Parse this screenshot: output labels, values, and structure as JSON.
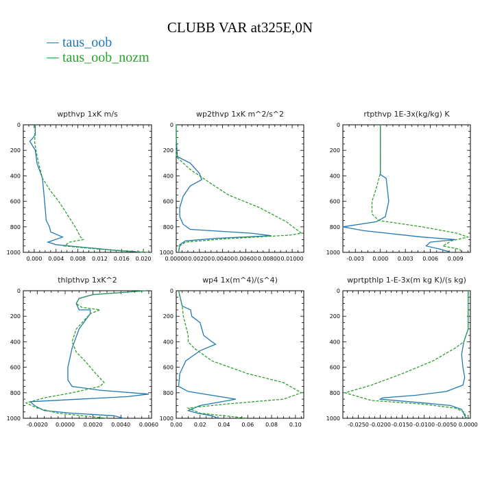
{
  "title": "CLUBB VAR at325E,0N",
  "colors": {
    "series_1": "#1f77b4",
    "series_2": "#2ca02c",
    "axis": "#000000"
  },
  "legend": [
    {
      "label": "taus_oob",
      "color": "#1f77b4",
      "style": "solid"
    },
    {
      "label": "taus_oob_nozm",
      "color": "#2ca02c",
      "style": "dashed"
    }
  ],
  "chart_data": [
    {
      "type": "line",
      "title": "wpthvp  1xK m/s",
      "ylim": [
        0,
        1000
      ],
      "y_reversed": true,
      "xlim": [
        -0.002,
        0.0215
      ],
      "y_ticks": [
        "0",
        "200",
        "400",
        "600",
        "800",
        "1000"
      ],
      "x_ticks": [
        "0.000",
        "0.004",
        "0.008",
        "0.012",
        "0.016",
        "0.020"
      ],
      "x_tick_values": [
        0,
        0.004,
        0.008,
        0.012,
        0.016,
        0.02
      ],
      "series": [
        {
          "name": "taus_oob",
          "points": [
            [
              0.0002,
              0
            ],
            [
              0.0002,
              80
            ],
            [
              -0.0008,
              130
            ],
            [
              0.0002,
              200
            ],
            [
              0.0005,
              300
            ],
            [
              0.0015,
              420
            ],
            [
              0.0018,
              550
            ],
            [
              0.002,
              650
            ],
            [
              0.0022,
              750
            ],
            [
              0.0028,
              800
            ],
            [
              0.003,
              840
            ],
            [
              0.0052,
              880
            ],
            [
              0.0025,
              920
            ],
            [
              0.004,
              940
            ],
            [
              0.009,
              960
            ],
            [
              0.015,
              985
            ],
            [
              0.02,
              1000
            ]
          ]
        },
        {
          "name": "taus_oob_nozm",
          "points": [
            [
              0.0002,
              0
            ],
            [
              0.0001,
              80
            ],
            [
              0.0001,
              140
            ],
            [
              0.0004,
              220
            ],
            [
              0.0008,
              300
            ],
            [
              0.0015,
              420
            ],
            [
              0.003,
              520
            ],
            [
              0.0045,
              600
            ],
            [
              0.006,
              700
            ],
            [
              0.0075,
              800
            ],
            [
              0.0085,
              880
            ],
            [
              0.009,
              900
            ],
            [
              0.0065,
              920
            ],
            [
              0.0055,
              950
            ],
            [
              0.012,
              975
            ],
            [
              0.021,
              1000
            ]
          ]
        }
      ]
    },
    {
      "type": "line",
      "title": "wp2thvp  1xK m^2/s^2",
      "ylim": [
        0,
        1000
      ],
      "y_reversed": true,
      "xlim": [
        0,
        0.011
      ],
      "y_ticks": [
        "0",
        "200",
        "400",
        "600",
        "800",
        "1000"
      ],
      "x_ticks": [
        "0.00000",
        "0.00200",
        "0.00400",
        "0.00600",
        "0.00800",
        "0.01000"
      ],
      "x_tick_values": [
        0,
        0.002,
        0.004,
        0.006,
        0.008,
        0.01
      ],
      "series": [
        {
          "name": "taus_oob",
          "points": [
            [
              0,
              0
            ],
            [
              0,
              100
            ],
            [
              0.0001,
              250
            ],
            [
              0.0012,
              300
            ],
            [
              0.002,
              380
            ],
            [
              0.0022,
              430
            ],
            [
              0.0012,
              480
            ],
            [
              0.0006,
              560
            ],
            [
              0.0003,
              650
            ],
            [
              0.0003,
              720
            ],
            [
              0.0006,
              780
            ],
            [
              0.0012,
              820
            ],
            [
              0.0065,
              850
            ],
            [
              0.0082,
              870
            ],
            [
              0.0035,
              890
            ],
            [
              0.0008,
              910
            ],
            [
              0.0003,
              940
            ],
            [
              0.0002,
              1000
            ]
          ]
        },
        {
          "name": "taus_oob_nozm",
          "points": [
            [
              0,
              0
            ],
            [
              0,
              100
            ],
            [
              0,
              250
            ],
            [
              0.0012,
              350
            ],
            [
              0.0025,
              430
            ],
            [
              0.0045,
              550
            ],
            [
              0.0072,
              650
            ],
            [
              0.0095,
              760
            ],
            [
              0.0108,
              850
            ],
            [
              0.0098,
              865
            ],
            [
              0.004,
              895
            ],
            [
              0.0008,
              920
            ],
            [
              0.0003,
              950
            ],
            [
              0.0002,
              1000
            ]
          ]
        }
      ]
    },
    {
      "type": "line",
      "title": "rtpthvp   1E-3x(kg/kg) K",
      "ylim": [
        0,
        1000
      ],
      "y_reversed": true,
      "xlim": [
        -0.0045,
        0.0108
      ],
      "y_ticks": [
        "0",
        "200",
        "400",
        "600",
        "800",
        "1000"
      ],
      "x_ticks": [
        "-0.003",
        "0.000",
        "0.003",
        "0.006",
        "0.009"
      ],
      "x_tick_values": [
        -0.003,
        0,
        0.003,
        0.006,
        0.009
      ],
      "series": [
        {
          "name": "taus_oob",
          "points": [
            [
              0,
              0
            ],
            [
              0,
              200
            ],
            [
              0,
              390
            ],
            [
              0.0007,
              420
            ],
            [
              0.001,
              600
            ],
            [
              0.0006,
              720
            ],
            [
              -0.0005,
              760
            ],
            [
              -0.0045,
              800
            ],
            [
              -0.002,
              830
            ],
            [
              0.005,
              880
            ],
            [
              0.009,
              900
            ],
            [
              0.006,
              920
            ],
            [
              0.0055,
              950
            ],
            [
              0.0072,
              975
            ],
            [
              0.0085,
              1000
            ]
          ]
        },
        {
          "name": "taus_oob_nozm",
          "points": [
            [
              0,
              0
            ],
            [
              0,
              200
            ],
            [
              0,
              380
            ],
            [
              -0.0005,
              500
            ],
            [
              -0.001,
              600
            ],
            [
              -0.001,
              700
            ],
            [
              -0.0002,
              750
            ],
            [
              0.005,
              800
            ],
            [
              0.0092,
              850
            ],
            [
              0.0105,
              880
            ],
            [
              0.0085,
              910
            ],
            [
              0.0075,
              950
            ],
            [
              0.0095,
              975
            ],
            [
              0.0098,
              1000
            ]
          ]
        }
      ]
    },
    {
      "type": "line",
      "title": "thlpthvp   1xK^2",
      "ylim": [
        0,
        1000
      ],
      "y_reversed": true,
      "xlim": [
        -0.003,
        0.0062
      ],
      "y_ticks": [
        "0",
        "200",
        "400",
        "600",
        "800",
        "1000"
      ],
      "x_ticks": [
        "-0.0020",
        "0.0000",
        "0.0020",
        "0.0040",
        "0.0060"
      ],
      "x_tick_values": [
        -0.002,
        0,
        0.002,
        0.004,
        0.006
      ],
      "series": [
        {
          "name": "taus_oob",
          "points": [
            [
              0.0058,
              0
            ],
            [
              0.002,
              30
            ],
            [
              0.001,
              60
            ],
            [
              0.0008,
              100
            ],
            [
              0.001,
              150
            ],
            [
              0.0018,
              150
            ],
            [
              0.0018,
              180
            ],
            [
              0.001,
              300
            ],
            [
              0.0005,
              450
            ],
            [
              0.0002,
              600
            ],
            [
              0.0002,
              700
            ],
            [
              0.0005,
              750
            ],
            [
              0.0025,
              780
            ],
            [
              0.006,
              810
            ],
            [
              0.0045,
              830
            ],
            [
              -0.0025,
              870
            ],
            [
              -0.0022,
              900
            ],
            [
              -0.0015,
              940
            ],
            [
              0.0005,
              960
            ],
            [
              0.0035,
              980
            ],
            [
              0.0042,
              1000
            ]
          ]
        },
        {
          "name": "taus_oob_nozm",
          "points": [
            [
              0.0058,
              0
            ],
            [
              0.002,
              30
            ],
            [
              0.001,
              60
            ],
            [
              0.0008,
              100
            ],
            [
              0.0012,
              130
            ],
            [
              0.0025,
              150
            ],
            [
              0.0018,
              180
            ],
            [
              0.0008,
              300
            ],
            [
              0.0005,
              400
            ],
            [
              0.0008,
              480
            ],
            [
              0.0015,
              560
            ],
            [
              0.0022,
              650
            ],
            [
              0.0028,
              720
            ],
            [
              0.0025,
              750
            ],
            [
              0.0005,
              800
            ],
            [
              -0.0015,
              840
            ],
            [
              -0.0028,
              880
            ],
            [
              -0.002,
              920
            ],
            [
              -0.0005,
              960
            ],
            [
              0.003,
              1000
            ]
          ]
        }
      ]
    },
    {
      "type": "line",
      "title": "wp4   1x(m^4)/(s^4)",
      "ylim": [
        0,
        1000
      ],
      "y_reversed": true,
      "xlim": [
        0,
        0.107
      ],
      "y_ticks": [
        "0",
        "200",
        "400",
        "600",
        "800",
        "1000"
      ],
      "x_ticks": [
        "0.00",
        "0.02",
        "0.04",
        "0.06",
        "0.08",
        "0.10"
      ],
      "x_tick_values": [
        0,
        0.02,
        0.04,
        0.06,
        0.08,
        0.1
      ],
      "series": [
        {
          "name": "taus_oob",
          "points": [
            [
              0.002,
              0
            ],
            [
              0.005,
              120
            ],
            [
              0.012,
              150
            ],
            [
              0.013,
              200
            ],
            [
              0.02,
              250
            ],
            [
              0.023,
              350
            ],
            [
              0.03,
              400
            ],
            [
              0.033,
              420
            ],
            [
              0.02,
              470
            ],
            [
              0.008,
              550
            ],
            [
              0.003,
              650
            ],
            [
              0.002,
              750
            ],
            [
              0.01,
              790
            ],
            [
              0.05,
              850
            ],
            [
              0.02,
              900
            ],
            [
              0.01,
              940
            ],
            [
              0.018,
              960
            ],
            [
              0.03,
              980
            ],
            [
              0.035,
              1000
            ]
          ]
        },
        {
          "name": "taus_oob_nozm",
          "points": [
            [
              0.002,
              0
            ],
            [
              0.005,
              120
            ],
            [
              0.006,
              200
            ],
            [
              0.01,
              350
            ],
            [
              0.01,
              400
            ],
            [
              0.015,
              450
            ],
            [
              0.03,
              550
            ],
            [
              0.06,
              650
            ],
            [
              0.09,
              720
            ],
            [
              0.105,
              800
            ],
            [
              0.09,
              850
            ],
            [
              0.04,
              890
            ],
            [
              0.01,
              920
            ],
            [
              0.02,
              960
            ],
            [
              0.04,
              980
            ],
            [
              0.06,
              1000
            ]
          ]
        }
      ]
    },
    {
      "type": "line",
      "title": "wprtpthlp   1-E-3x(m kg K)/(s kg)",
      "ylim": [
        0,
        1000
      ],
      "y_reversed": true,
      "xlim": [
        -0.0285,
        0.0005
      ],
      "y_ticks": [
        "0",
        "200",
        "400",
        "600",
        "800",
        "1000"
      ],
      "x_ticks": [
        "-0.0250",
        "-0.0200",
        "-0.0150",
        "-0.0100",
        "-0.0050",
        "0.0000"
      ],
      "x_tick_values": [
        -0.025,
        -0.02,
        -0.015,
        -0.01,
        -0.005,
        0
      ],
      "series": [
        {
          "name": "taus_oob",
          "points": [
            [
              0,
              0
            ],
            [
              0,
              300
            ],
            [
              -0.001,
              400
            ],
            [
              -0.0015,
              500
            ],
            [
              -0.0012,
              600
            ],
            [
              -0.0008,
              680
            ],
            [
              -0.0012,
              740
            ],
            [
              -0.005,
              790
            ],
            [
              -0.012,
              820
            ],
            [
              -0.0195,
              840
            ],
            [
              -0.02,
              850
            ],
            [
              -0.01,
              880
            ],
            [
              -0.004,
              900
            ],
            [
              -0.0015,
              930
            ],
            [
              -0.0005,
              1000
            ]
          ]
        },
        {
          "name": "taus_oob_nozm",
          "points": [
            [
              0,
              0
            ],
            [
              0,
              300
            ],
            [
              -0.001,
              400
            ],
            [
              -0.003,
              450
            ],
            [
              -0.008,
              550
            ],
            [
              -0.015,
              650
            ],
            [
              -0.022,
              740
            ],
            [
              -0.028,
              800
            ],
            [
              -0.022,
              860
            ],
            [
              -0.01,
              890
            ],
            [
              -0.003,
              920
            ],
            [
              -0.001,
              950
            ],
            [
              -0.0003,
              1000
            ]
          ]
        }
      ]
    }
  ]
}
